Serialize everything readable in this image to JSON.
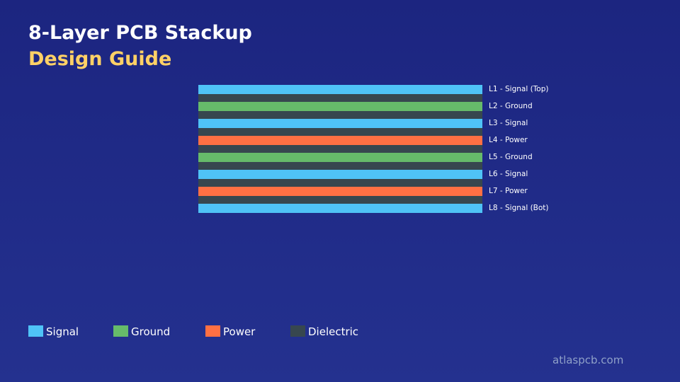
{
  "header": {
    "title": "8-Layer PCB Stackup",
    "subtitle": "Design Guide"
  },
  "colors": {
    "signal": "#4fc3f7",
    "ground": "#66bb6a",
    "power": "#ff7043",
    "dielectric": "#37474f",
    "subtitle": "#ffd166",
    "footer": "#8fa0c8"
  },
  "stackup": {
    "layers": [
      {
        "label": "L1 - Signal (Top)",
        "type": "signal"
      },
      {
        "label": "L2 - Ground",
        "type": "ground"
      },
      {
        "label": "L3 - Signal",
        "type": "signal"
      },
      {
        "label": "L4 - Power",
        "type": "power"
      },
      {
        "label": "L5 - Ground",
        "type": "ground"
      },
      {
        "label": "L6 - Signal",
        "type": "signal"
      },
      {
        "label": "L7 - Power",
        "type": "power"
      },
      {
        "label": "L8 - Signal (Bot)",
        "type": "signal"
      }
    ]
  },
  "legend": {
    "items": [
      {
        "label": "Signal",
        "type": "signal"
      },
      {
        "label": "Ground",
        "type": "ground"
      },
      {
        "label": "Power",
        "type": "power"
      },
      {
        "label": "Dielectric",
        "type": "dielectric"
      }
    ]
  },
  "footer": {
    "site": "atlaspcb.com"
  }
}
